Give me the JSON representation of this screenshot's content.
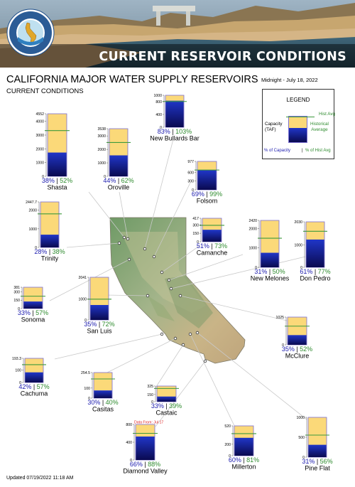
{
  "header": {
    "banner_title": "CURRENT RESERVOIR CONDITIONS",
    "seal_text": "DEPARTMENT OF WATER RESOURCES · STATE OF CALIFORNIA"
  },
  "main_title": "CALIFORNIA MAJOR WATER SUPPLY RESERVOIRS",
  "sub_title": "CURRENT CONDITIONS",
  "timestamp": "Midnight - July 18, 2022",
  "footer": "Updated 07/19/2022 11:18 AM",
  "legend": {
    "title": "LEGEND",
    "capacity_label": "Capacity\n(TAF)",
    "hist_avg": "Hist Avg",
    "historical_average": "Historical\nAverage",
    "pct_capacity": "% of Capacity",
    "separator": "|",
    "pct_hist": "% of Hist Avg"
  },
  "colors": {
    "capacity_fill": "#fbd979",
    "storage_top": "#2036c8",
    "storage_bottom": "#0a0a50",
    "hist_avg_line": "#3d9a3d",
    "pct_capacity_text": "#2020b0",
    "pct_hist_text": "#2e8b2e",
    "bar_border": "#7b6fd0"
  },
  "chart_data": {
    "type": "bar",
    "units": "TAF",
    "series": [
      {
        "name": "Capacity"
      },
      {
        "name": "Storage"
      },
      {
        "name": "Hist Avg"
      }
    ],
    "reservoirs": [
      {
        "name": "Shasta",
        "capacity": 4552,
        "pct_capacity": 38,
        "pct_hist_avg": 52,
        "ticks": [
          "4552",
          "4000",
          "3000",
          "2000",
          "1000",
          "0"
        ],
        "tick_values": [
          4552,
          4000,
          3000,
          2000,
          1000,
          0
        ]
      },
      {
        "name": "Oroville",
        "capacity": 3538,
        "pct_capacity": 44,
        "pct_hist_avg": 62,
        "ticks": [
          "3538",
          "3000",
          "2000",
          "1000",
          "0"
        ],
        "tick_values": [
          3538,
          3000,
          2000,
          1000,
          0
        ]
      },
      {
        "name": "New Bullards Bar",
        "capacity": 1000,
        "pct_capacity": 83,
        "pct_hist_avg": 103,
        "ticks": [
          "1000",
          "800",
          "400",
          "0"
        ],
        "tick_values": [
          1000,
          800,
          400,
          0
        ]
      },
      {
        "name": "Folsom",
        "capacity": 977,
        "pct_capacity": 69,
        "pct_hist_avg": 99,
        "ticks": [
          "977",
          "600",
          "300",
          "0"
        ],
        "tick_values": [
          977,
          600,
          300,
          0
        ]
      },
      {
        "name": "Trinity",
        "capacity": 2447.7,
        "pct_capacity": 28,
        "pct_hist_avg": 38,
        "ticks": [
          "2447.7",
          "2000",
          "1000",
          "0"
        ],
        "tick_values": [
          2447.7,
          2000,
          1000,
          0
        ]
      },
      {
        "name": "Camanche",
        "capacity": 417,
        "pct_capacity": 51,
        "pct_hist_avg": 73,
        "ticks": [
          "417",
          "300",
          "150",
          "0"
        ],
        "tick_values": [
          417,
          300,
          150,
          0
        ]
      },
      {
        "name": "New Melones",
        "capacity": 2420,
        "pct_capacity": 31,
        "pct_hist_avg": 50,
        "ticks": [
          "2420",
          "2000",
          "1000",
          "0"
        ],
        "tick_values": [
          2420,
          2000,
          1000,
          0
        ]
      },
      {
        "name": "Don Pedro",
        "capacity": 2030,
        "pct_capacity": 61,
        "pct_hist_avg": 77,
        "ticks": [
          "2030",
          "1000",
          "0"
        ],
        "tick_values": [
          2030,
          1000,
          0
        ]
      },
      {
        "name": "Sonoma",
        "capacity": 381,
        "pct_capacity": 33,
        "pct_hist_avg": 57,
        "ticks": [
          "381",
          "300",
          "150",
          "0"
        ],
        "tick_values": [
          381,
          300,
          150,
          0
        ]
      },
      {
        "name": "San Luis",
        "capacity": 2041,
        "pct_capacity": 35,
        "pct_hist_avg": 72,
        "ticks": [
          "2041",
          "1000",
          "0"
        ],
        "tick_values": [
          2041,
          1000,
          0
        ]
      },
      {
        "name": "McClure",
        "capacity": 1025,
        "pct_capacity": 35,
        "pct_hist_avg": 52,
        "ticks": [
          "1025",
          "0"
        ],
        "tick_values": [
          1025,
          0
        ]
      },
      {
        "name": "Cachuma",
        "capacity": 193.3,
        "pct_capacity": 42,
        "pct_hist_avg": 57,
        "ticks": [
          "193.3",
          "100",
          "0"
        ],
        "tick_values": [
          193.3,
          100,
          0
        ]
      },
      {
        "name": "Casitas",
        "capacity": 254.5,
        "pct_capacity": 30,
        "pct_hist_avg": 40,
        "ticks": [
          "254.5",
          "100",
          "0"
        ],
        "tick_values": [
          254.5,
          100,
          0
        ]
      },
      {
        "name": "Castaic",
        "capacity": 325,
        "pct_capacity": 33,
        "pct_hist_avg": 39,
        "ticks": [
          "325",
          "150",
          "0"
        ],
        "tick_values": [
          325,
          150,
          0
        ]
      },
      {
        "name": "Diamond Valley",
        "capacity": 800,
        "pct_capacity": 66,
        "pct_hist_avg": 88,
        "ticks": [
          "800",
          "400",
          "0"
        ],
        "tick_values": [
          800,
          400,
          0
        ],
        "note": "Data From: Jul 17"
      },
      {
        "name": "Millerton",
        "capacity": 520,
        "pct_capacity": 60,
        "pct_hist_avg": 81,
        "ticks": [
          "520",
          "200",
          "0"
        ],
        "tick_values": [
          520,
          200,
          0
        ]
      },
      {
        "name": "Pine Flat",
        "capacity": 1000,
        "pct_capacity": 31,
        "pct_hist_avg": 56,
        "ticks": [
          "1000",
          "500",
          "0"
        ],
        "tick_values": [
          1000,
          500,
          0
        ]
      }
    ]
  }
}
